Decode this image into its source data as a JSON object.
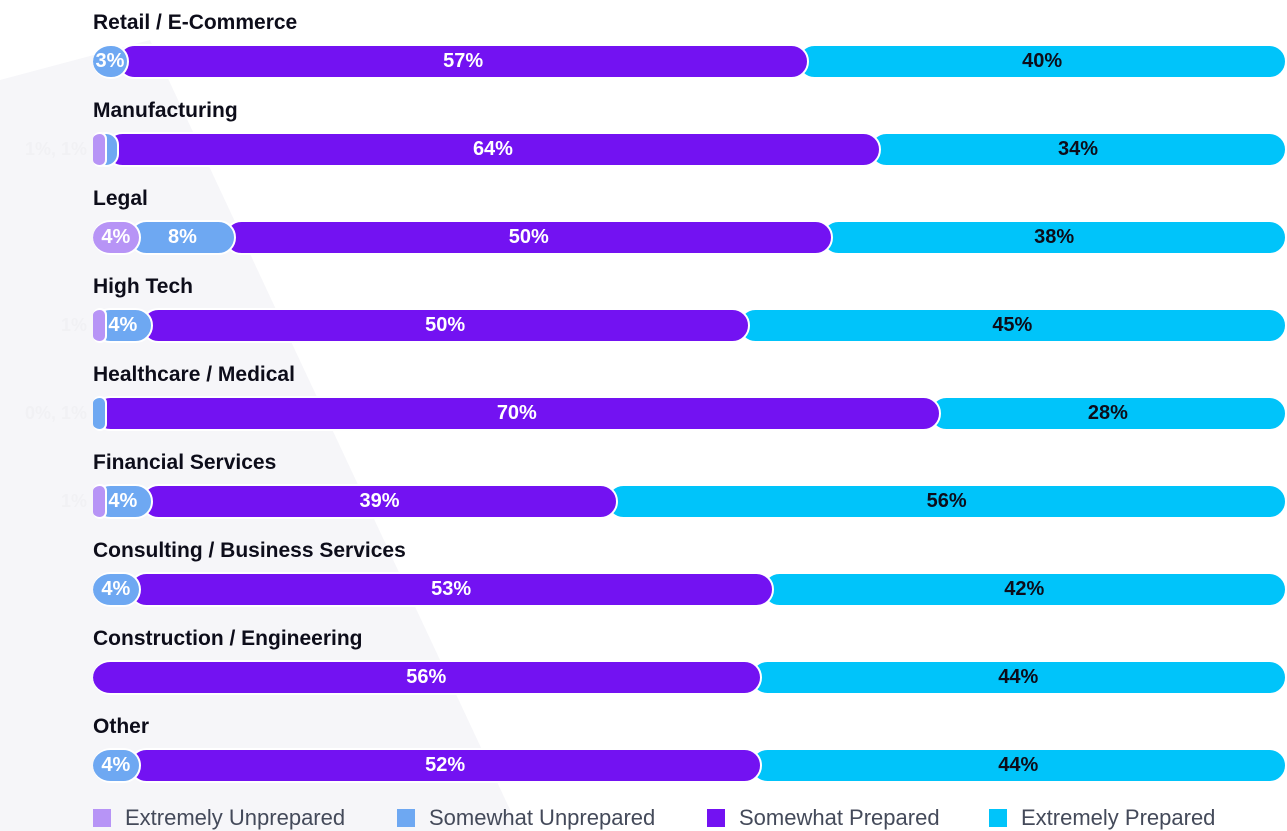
{
  "chart_data": {
    "type": "bar",
    "orientation": "horizontal",
    "stacked": true,
    "grid": false,
    "legend_position": "bottom",
    "xlim": [
      0,
      100
    ],
    "categories": [
      "Retail / E-Commerce",
      "Manufacturing",
      "Legal",
      "High Tech",
      "Healthcare / Medical",
      "Financial Services",
      "Consulting / Business Services",
      "Construction / Engineering",
      "Other"
    ],
    "series": [
      {
        "name": "Extremely Unprepared",
        "color": "#b794f6",
        "values": [
          0,
          1,
          4,
          1,
          0,
          1,
          0,
          0,
          0
        ]
      },
      {
        "name": "Somewhat Unprepared",
        "color": "#6ea8f2",
        "values": [
          3,
          1,
          8,
          4,
          1,
          4,
          4,
          0,
          4
        ]
      },
      {
        "name": "Somewhat Prepared",
        "color": "#7312f2",
        "values": [
          57,
          64,
          50,
          50,
          70,
          39,
          53,
          56,
          52
        ]
      },
      {
        "name": "Extremely Prepared",
        "color": "#00c4fa",
        "values": [
          40,
          34,
          38,
          45,
          28,
          56,
          42,
          44,
          44
        ]
      }
    ],
    "bar_labels": [
      [
        "",
        "3%",
        "57%",
        "40%"
      ],
      [
        "",
        "",
        "64%",
        "34%"
      ],
      [
        "4%",
        "8%",
        "50%",
        "38%"
      ],
      [
        "",
        "4%",
        "50%",
        "45%"
      ],
      [
        "",
        "",
        "70%",
        "28%"
      ],
      [
        "",
        "4%",
        "39%",
        "56%"
      ],
      [
        "",
        "4%",
        "53%",
        "42%"
      ],
      [
        "",
        "",
        "56%",
        "44%"
      ],
      [
        "",
        "4%",
        "52%",
        "44%"
      ]
    ],
    "label_colors": [
      "#ffffff",
      "#ffffff",
      "#ffffff",
      "#0d0d1a"
    ],
    "outside_labels": [
      "",
      "1%, 1%",
      "",
      "1%",
      "0%, 1%",
      "1%",
      "",
      "",
      ""
    ]
  }
}
